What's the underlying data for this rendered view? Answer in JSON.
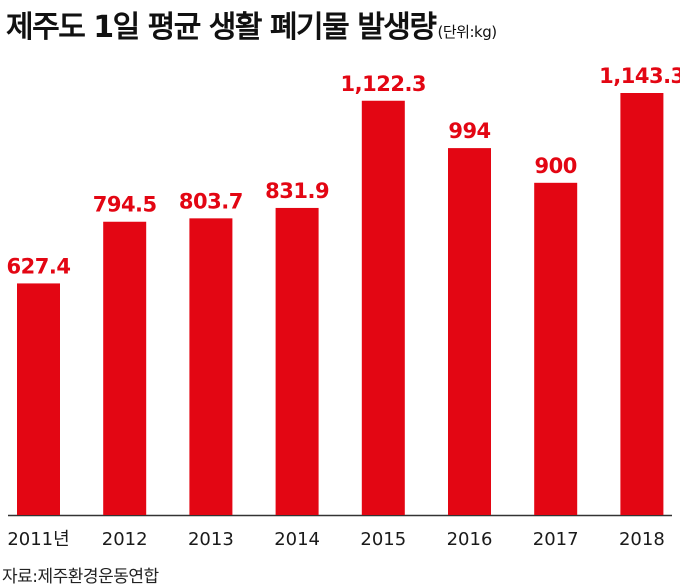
{
  "title": "제주도 1일 평균 생활 폐기물 발생량",
  "unit_label": "(단위:kg)",
  "source": "자료:제주환경운동연합",
  "colors": {
    "bar": "#e30613",
    "label": "#e30613",
    "axis": "#333333"
  },
  "chart_data": {
    "type": "bar",
    "title": "제주도 1일 평균 생활 폐기물 발생량",
    "categories": [
      "2011년",
      "2012",
      "2013",
      "2014",
      "2015",
      "2016",
      "2017",
      "2018"
    ],
    "values": [
      627.4,
      794.5,
      803.7,
      831.9,
      1122.3,
      994,
      900,
      1143.3
    ],
    "data_labels": [
      "627.4",
      "794.5",
      "803.7",
      "831.9",
      "1,122.3",
      "994",
      "900",
      "1,143.3"
    ],
    "xlabel": "",
    "ylabel": "",
    "ylim": [
      0,
      1143.3
    ],
    "grid": false,
    "legend": "none"
  }
}
